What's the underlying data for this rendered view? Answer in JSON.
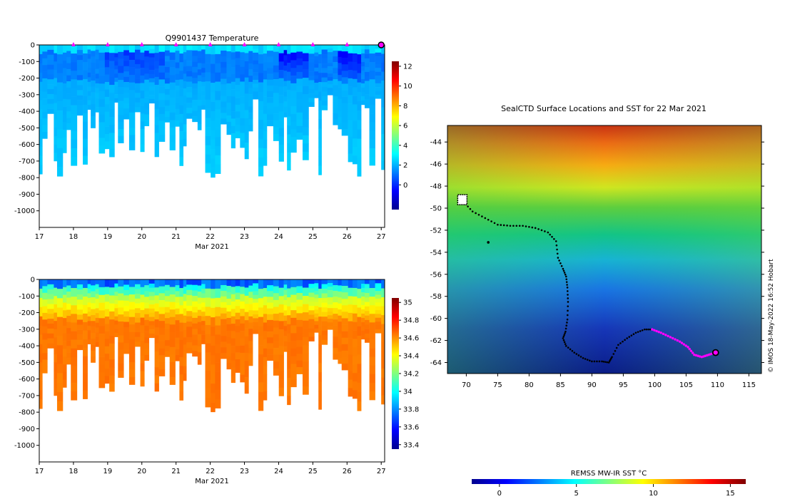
{
  "chart_data": [
    {
      "type": "heatmap",
      "title": "Q9901437  Temperature",
      "xlabel": "Mar 2021",
      "xlim": [
        17,
        27.1
      ],
      "x_ticks": [
        "17",
        "18",
        "19",
        "20",
        "21",
        "22",
        "23",
        "24",
        "25",
        "26",
        "27"
      ],
      "ylim": [
        -1100,
        0
      ],
      "y_ticks": [
        "0",
        "-100",
        "-200",
        "-300",
        "-400",
        "-500",
        "-600",
        "-700",
        "-800",
        "-900",
        "-1000"
      ],
      "colorbar_range": [
        -2.5,
        12.5
      ],
      "colorbar_ticks": [
        "0",
        "2",
        "4",
        "6",
        "8",
        "10",
        "12"
      ],
      "surfacing_marker_days": [
        18,
        19,
        20,
        21,
        22,
        23,
        24,
        25,
        26
      ],
      "latest_profile_day": 27
    },
    {
      "type": "heatmap",
      "title": "",
      "xlabel": "Mar 2021",
      "xlim": [
        17,
        27.1
      ],
      "x_ticks": [
        "17",
        "18",
        "19",
        "20",
        "21",
        "22",
        "23",
        "24",
        "25",
        "26",
        "27"
      ],
      "ylim": [
        -1100,
        0
      ],
      "y_ticks": [
        "0",
        "-100",
        "-200",
        "-300",
        "-400",
        "-500",
        "-600",
        "-700",
        "-800",
        "-900",
        "-1000"
      ],
      "colorbar_range": [
        33.35,
        35.05
      ],
      "colorbar_ticks": [
        "33.4",
        "33.6",
        "33.8",
        "34",
        "34.2",
        "34.4",
        "34.6",
        "34.8",
        "35"
      ]
    },
    {
      "type": "heatmap",
      "title": "SealCTD Surface Locations and SST for 22 Mar 2021",
      "xlabel": "",
      "xlim": [
        67,
        117
      ],
      "x_ticks": [
        "70",
        "75",
        "80",
        "85",
        "90",
        "95",
        "100",
        "105",
        "110",
        "115"
      ],
      "ylim": [
        -65,
        -42.5
      ],
      "y_ticks": [
        "-44",
        "-46",
        "-48",
        "-50",
        "-52",
        "-54",
        "-56",
        "-58",
        "-60",
        "-62",
        "-64"
      ],
      "colorbar_label": "REMSS MW-IR SST °C",
      "colorbar_range": [
        -1.8,
        16
      ],
      "colorbar_ticks": [
        "0",
        "5",
        "10",
        "15"
      ],
      "track_lon": [
        69.5,
        71,
        73,
        75,
        77,
        79,
        81,
        83,
        84.3,
        84.6,
        85.4,
        85.9,
        86.1,
        86.2,
        86.1,
        85.8,
        85.4,
        85.9,
        87.2,
        88.6,
        90,
        91.6,
        92.7,
        93.2,
        94.2,
        95.6,
        97,
        98.4,
        99.6,
        101,
        102.5,
        104,
        105.3,
        106.3,
        107.5,
        108.6,
        109.7
      ],
      "track_lat": [
        -49.4,
        -50.3,
        -50.9,
        -51.5,
        -51.6,
        -51.6,
        -51.8,
        -52.2,
        -53,
        -54.5,
        -55.5,
        -56.2,
        -57.2,
        -58.5,
        -60.1,
        -61.2,
        -61.8,
        -62.5,
        -63.1,
        -63.6,
        -63.9,
        -63.9,
        -64,
        -63.5,
        -62.4,
        -61.8,
        -61.3,
        -61,
        -61,
        -61.3,
        -61.7,
        -62.1,
        -62.6,
        -63.3,
        -63.5,
        -63.3,
        -63.1
      ],
      "recent_segment_from_index": 28,
      "latest_fix": [
        109.7,
        -63.1
      ],
      "credit": "© IMOS 18-May-2022 16:52 Hobart"
    }
  ]
}
